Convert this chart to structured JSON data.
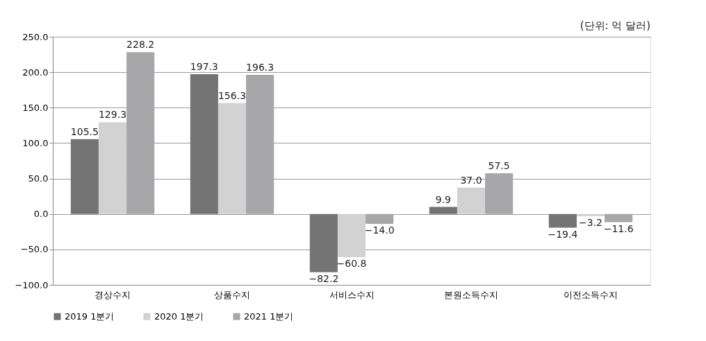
{
  "chart_data": {
    "type": "bar",
    "categories": [
      "경상수지",
      "상품수지",
      "서비스수지",
      "본원소득수지",
      "이전소득수지"
    ],
    "series": [
      {
        "name": "2019 1분기",
        "color": "#747474",
        "values": [
          105.5,
          197.3,
          -82.2,
          9.9,
          -19.4
        ],
        "value_labels": [
          "105.5",
          "197.3",
          "−82.2",
          "9.9",
          "−19.4"
        ]
      },
      {
        "name": "2020 1분기",
        "color": "#d2d2d2",
        "values": [
          129.3,
          156.3,
          -60.8,
          37.0,
          -3.2
        ],
        "value_labels": [
          "129.3",
          "156.3",
          "−60.8",
          "37.0",
          "−3.2"
        ]
      },
      {
        "name": "2021 1분기",
        "color": "#a7a7a9",
        "values": [
          228.2,
          196.3,
          -14.0,
          57.5,
          -11.6
        ],
        "value_labels": [
          "228.2",
          "196.3",
          "−14.0",
          "57.5",
          "−11.6"
        ]
      }
    ],
    "ylim": [
      -100,
      250
    ],
    "yticks": [
      {
        "value": -100,
        "label": "−100.0"
      },
      {
        "value": -50,
        "label": "−50.0"
      },
      {
        "value": 0,
        "label": "0.0"
      },
      {
        "value": 50,
        "label": "50.0"
      },
      {
        "value": 100,
        "label": "100.0"
      },
      {
        "value": 150,
        "label": "150.0"
      },
      {
        "value": 200,
        "label": "200.0"
      },
      {
        "value": 250,
        "label": "250.0"
      }
    ],
    "grid": "y",
    "legend": "bottom",
    "annotations": [
      "(단위: 억 달러)"
    ]
  }
}
